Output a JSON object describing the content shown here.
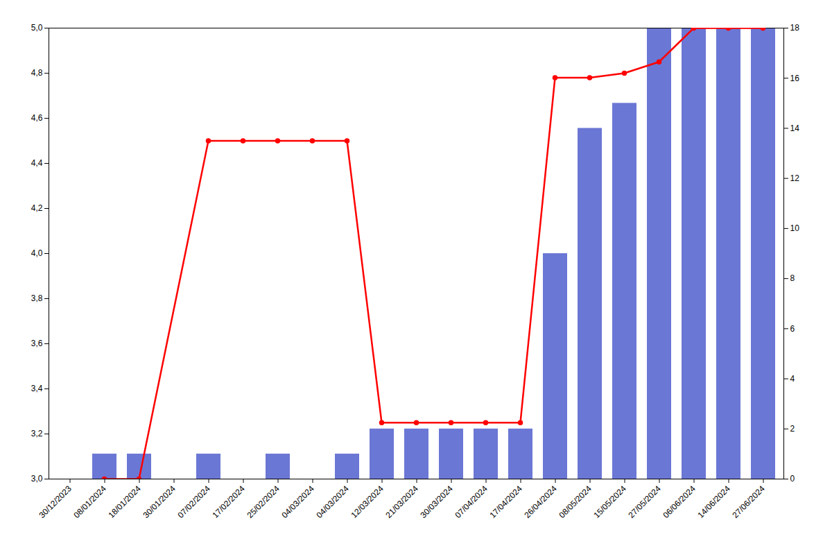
{
  "chart_data": {
    "type": "bar",
    "categories": [
      "30/12/2023",
      "08/01/2024",
      "18/01/2024",
      "30/01/2024",
      "07/02/2024",
      "17/02/2024",
      "25/02/2024",
      "04/03/2024",
      "04/03/2024",
      "12/03/2024",
      "21/03/2024",
      "30/03/2024",
      "07/04/2024",
      "17/04/2024",
      "26/04/2024",
      "08/05/2024",
      "15/05/2024",
      "27/05/2024",
      "06/06/2024",
      "14/06/2024",
      "27/06/2024"
    ],
    "series": [
      {
        "type": "bar",
        "axis": "y2",
        "color": "#6b77d4",
        "values": [
          0,
          1,
          1,
          0,
          1,
          0,
          1,
          0,
          1,
          2,
          2,
          2,
          2,
          2,
          9,
          14,
          15,
          18,
          18,
          18,
          18
        ]
      },
      {
        "type": "line",
        "color": "#ff0000",
        "marker": "circle",
        "values": [
          null,
          3.0,
          3.0,
          null,
          4.5,
          4.5,
          4.5,
          4.5,
          4.5,
          3.25,
          3.25,
          3.25,
          3.25,
          3.25,
          4.78,
          4.78,
          4.8,
          4.85,
          5.0,
          5.0,
          5.0
        ]
      }
    ],
    "ylim": [
      3.0,
      5.0
    ],
    "yticks": [
      {
        "value": 3.0,
        "label": "3,0"
      },
      {
        "value": 3.2,
        "label": "3,2"
      },
      {
        "value": 3.4,
        "label": "3,4"
      },
      {
        "value": 3.6,
        "label": "3,6"
      },
      {
        "value": 3.8,
        "label": "3,8"
      },
      {
        "value": 4.0,
        "label": "4,0"
      },
      {
        "value": 4.2,
        "label": "4,2"
      },
      {
        "value": 4.4,
        "label": "4,4"
      },
      {
        "value": 4.6,
        "label": "4,6"
      },
      {
        "value": 4.8,
        "label": "4,8"
      },
      {
        "value": 5.0,
        "label": "5,0"
      }
    ],
    "y2lim": [
      0,
      18
    ],
    "y2ticks": [
      0,
      2,
      4,
      6,
      8,
      10,
      12,
      14,
      16,
      18
    ],
    "grid": false
  }
}
